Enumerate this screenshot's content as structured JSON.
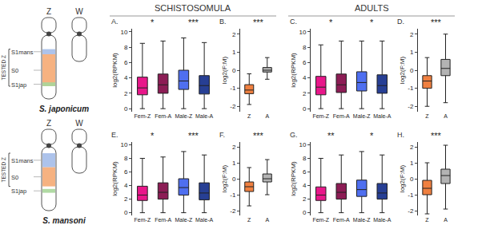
{
  "headers": [
    "SCHISTOSOMULA",
    "ADULTS"
  ],
  "diagrams": [
    {
      "species": "S. japonicum",
      "chromosomes": [
        "Z",
        "W"
      ],
      "regions": [
        "S1mans",
        "S0",
        "S1jap"
      ],
      "bracket": "TESTED Z"
    },
    {
      "species": "S. mansoni",
      "chromosomes": [
        "Z",
        "W"
      ],
      "regions": [
        "S1mans",
        "S0",
        "S1jap"
      ],
      "bracket": "TESTED Z"
    }
  ],
  "chart_data": [
    {
      "type": "box",
      "title": "A.",
      "y_label": "log2(RPKM)",
      "categories": [
        "Fem-Z",
        "Fem-A",
        "Male-Z",
        "Male-A"
      ],
      "colors": [
        "#e8178a",
        "#8c1d55",
        "#4f6ff0",
        "#273f94"
      ],
      "stats": {
        "lower": [
          0,
          0,
          0,
          0
        ],
        "q1": [
          1.8,
          2.0,
          2.5,
          1.9
        ],
        "median": [
          2.7,
          3.1,
          3.6,
          3.0
        ],
        "q3": [
          4.1,
          4.5,
          5.0,
          4.3
        ],
        "upper": [
          8.5,
          8.8,
          9.2,
          8.6
        ]
      },
      "ylim": [
        -0.4,
        10.4
      ],
      "yticks": [
        0,
        2,
        4,
        6,
        8,
        10
      ],
      "grid": false,
      "annotations": [
        {
          "text": "*",
          "between": [
            "Fem-Z",
            "Fem-A"
          ]
        },
        {
          "text": "***",
          "between": [
            "Male-Z",
            "Male-A"
          ]
        }
      ]
    },
    {
      "type": "box",
      "title": "B.",
      "y_label": "log2(F:M)",
      "categories": [
        "Z",
        "A"
      ],
      "colors": [
        "#f08040",
        "#b3b3b3"
      ],
      "stats": {
        "lower": [
          -1.9,
          -0.5
        ],
        "q1": [
          -1.3,
          -0.1
        ],
        "median": [
          -1.1,
          0.0
        ],
        "q3": [
          -0.8,
          0.15
        ],
        "upper": [
          -0.2,
          0.7
        ]
      },
      "ylim": [
        -2.3,
        2.3
      ],
      "yticks": [
        -2,
        -1,
        0,
        1,
        2
      ],
      "grid": false,
      "annotations": [
        {
          "text": "***",
          "between": [
            "Z",
            "A"
          ]
        }
      ]
    },
    {
      "type": "box",
      "title": "C.",
      "y_label": "log2(RPKM)",
      "categories": [
        "Fem-Z",
        "Fem-A",
        "Male-Z",
        "Male-A"
      ],
      "colors": [
        "#e8178a",
        "#8c1d55",
        "#4f6ff0",
        "#273f94"
      ],
      "stats": {
        "lower": [
          0,
          0,
          0,
          0
        ],
        "q1": [
          1.8,
          2.1,
          2.3,
          2.0
        ],
        "median": [
          2.8,
          3.1,
          3.4,
          3.0
        ],
        "q3": [
          4.2,
          4.5,
          4.8,
          4.4
        ],
        "upper": [
          8.3,
          8.8,
          8.8,
          8.8
        ]
      },
      "ylim": [
        -0.4,
        10.4
      ],
      "yticks": [
        0,
        2,
        4,
        6,
        8,
        10
      ],
      "grid": false,
      "annotations": [
        {
          "text": "*",
          "between": [
            "Fem-Z",
            "Fem-A"
          ]
        },
        {
          "text": "*",
          "between": [
            "Male-Z",
            "Male-A"
          ]
        }
      ]
    },
    {
      "type": "box",
      "title": "D.",
      "y_label": "log2(F:M)",
      "categories": [
        "Z",
        "A"
      ],
      "colors": [
        "#f08040",
        "#b3b3b3"
      ],
      "stats": {
        "lower": [
          -2.0,
          -1.8
        ],
        "q1": [
          -1.0,
          -0.3
        ],
        "median": [
          -0.6,
          0.1
        ],
        "q3": [
          -0.3,
          0.6
        ],
        "upper": [
          0.7,
          2.0
        ]
      },
      "ylim": [
        -2.3,
        2.3
      ],
      "yticks": [
        -2,
        -1,
        0,
        1,
        2
      ],
      "grid": false,
      "annotations": [
        {
          "text": "***",
          "between": [
            "Z",
            "A"
          ]
        }
      ]
    },
    {
      "type": "box",
      "title": "E.",
      "y_label": "log2(RPKM)",
      "categories": [
        "Fem-Z",
        "Fem-A",
        "Male-Z",
        "Male-A"
      ],
      "colors": [
        "#e8178a",
        "#8c1d55",
        "#4f6ff0",
        "#273f94"
      ],
      "stats": {
        "lower": [
          0,
          0,
          0,
          0
        ],
        "q1": [
          1.8,
          2.0,
          2.6,
          1.9
        ],
        "median": [
          2.6,
          3.0,
          3.7,
          2.9
        ],
        "q3": [
          3.9,
          4.4,
          5.0,
          4.4
        ],
        "upper": [
          8.0,
          8.2,
          9.0,
          8.5
        ]
      },
      "ylim": [
        -0.4,
        10.4
      ],
      "yticks": [
        0,
        2,
        4,
        6,
        8,
        10
      ],
      "grid": false,
      "annotations": [
        {
          "text": "*",
          "between": [
            "Fem-Z",
            "Fem-A"
          ]
        },
        {
          "text": "***",
          "between": [
            "Male-Z",
            "Male-A"
          ]
        }
      ]
    },
    {
      "type": "box",
      "title": "F.",
      "y_label": "log2(F:M)",
      "categories": [
        "Z",
        "A"
      ],
      "colors": [
        "#f08040",
        "#b3b3b3"
      ],
      "stats": {
        "lower": [
          -1.7,
          -1.0
        ],
        "q1": [
          -0.8,
          -0.2
        ],
        "median": [
          -0.5,
          0.0
        ],
        "q3": [
          -0.2,
          0.3
        ],
        "upper": [
          0.7,
          1.2
        ]
      },
      "ylim": [
        -2.3,
        2.3
      ],
      "yticks": [
        -2,
        -1,
        0,
        1,
        2
      ],
      "grid": false,
      "annotations": [
        {
          "text": "***",
          "between": [
            "Z",
            "A"
          ]
        }
      ]
    },
    {
      "type": "box",
      "title": "G.",
      "y_label": "log2(RPKM)",
      "categories": [
        "Fem-Z",
        "Fem-A",
        "Male-Z",
        "Male-A"
      ],
      "colors": [
        "#e8178a",
        "#8c1d55",
        "#4f6ff0",
        "#273f94"
      ],
      "stats": {
        "lower": [
          0,
          0,
          0,
          0
        ],
        "q1": [
          1.8,
          2.0,
          2.4,
          2.0
        ],
        "median": [
          2.6,
          3.0,
          3.4,
          2.9
        ],
        "q3": [
          3.8,
          4.3,
          4.8,
          4.3
        ],
        "upper": [
          8.0,
          8.5,
          9.0,
          8.5
        ]
      },
      "ylim": [
        -0.4,
        10.4
      ],
      "yticks": [
        0,
        2,
        4,
        6,
        8,
        10
      ],
      "grid": false,
      "annotations": [
        {
          "text": "**",
          "between": [
            "Fem-Z",
            "Fem-A"
          ]
        },
        {
          "text": "*",
          "between": [
            "Male-Z",
            "Male-A"
          ]
        }
      ]
    },
    {
      "type": "box",
      "title": "H.",
      "y_label": "log2(F:M)",
      "categories": [
        "Z",
        "A"
      ],
      "colors": [
        "#f08040",
        "#b3b3b3"
      ],
      "stats": {
        "lower": [
          -2.2,
          -1.9
        ],
        "q1": [
          -1.0,
          -0.3
        ],
        "median": [
          -0.6,
          0.2
        ],
        "q3": [
          -0.1,
          0.6
        ],
        "upper": [
          1.0,
          2.1
        ]
      },
      "ylim": [
        -2.3,
        2.3
      ],
      "yticks": [
        -2,
        -1,
        0,
        1,
        2
      ],
      "grid": false,
      "annotations": [
        {
          "text": "***",
          "between": [
            "Z",
            "A"
          ]
        }
      ]
    }
  ]
}
